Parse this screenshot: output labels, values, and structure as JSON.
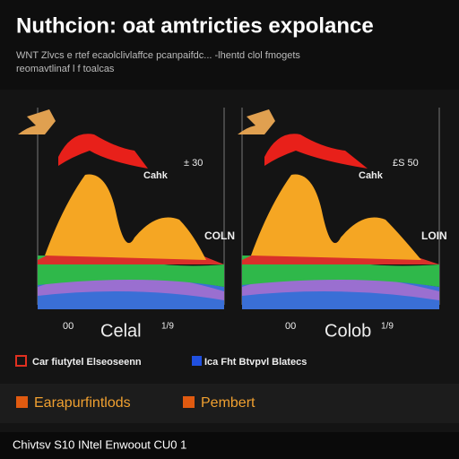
{
  "header": {
    "title": "Nuthcion: oat amtricties expolance",
    "subtitle": [
      "WNT Zlvcs e rtef ecaolclivlaffce pcanpaifdc... -lhentd clol fmogets",
      "reomavtlinaf l f toalcas"
    ]
  },
  "panels": [
    {
      "top_label": "± 30",
      "side_label": "Cahk",
      "right_label": "COLN",
      "bottom_left": "00",
      "caption": "Celal",
      "bottom_right": "1/9"
    },
    {
      "top_label": "£S 50",
      "side_label": "Cahk",
      "right_label": "LOIN",
      "bottom_left": "00",
      "caption": "Colob",
      "bottom_right": "1/9"
    }
  ],
  "legend": {
    "row1": [
      "Car fiutytel Elseoseenn",
      "Ica Fht Btvpvl Blatecs"
    ],
    "row2": [
      "Earapurfintlods",
      "Pembert"
    ]
  },
  "footer": {
    "text": "Chivtsv S10 INtel Enwoout CU0 1"
  }
}
